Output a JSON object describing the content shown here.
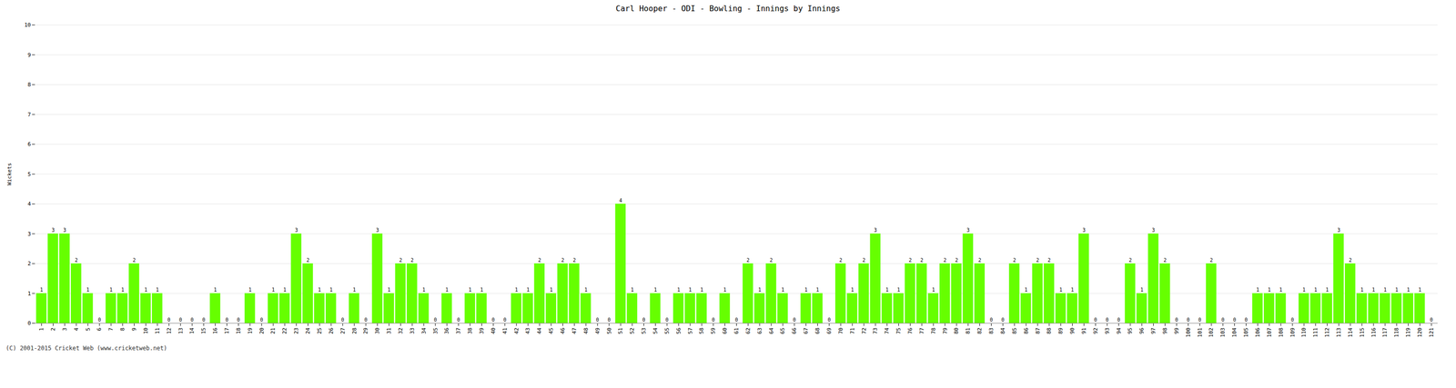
{
  "chart_data": {
    "type": "bar",
    "title": "Carl Hooper - ODI - Bowling - Innings by Innings",
    "ylabel": "Wickets",
    "annotations": [
      "(C) 2001-2015 Cricket Web (www.cricketweb.net)"
    ],
    "categories": [
      1,
      2,
      3,
      4,
      5,
      6,
      7,
      8,
      9,
      10,
      11,
      12,
      13,
      14,
      15,
      16,
      17,
      18,
      19,
      20,
      21,
      22,
      23,
      24,
      25,
      26,
      27,
      28,
      29,
      30,
      31,
      32,
      33,
      34,
      35,
      36,
      37,
      38,
      39,
      40,
      41,
      42,
      43,
      44,
      45,
      46,
      47,
      48,
      49,
      50,
      51,
      52,
      53,
      54,
      55,
      56,
      57,
      58,
      59,
      60,
      61,
      62,
      63,
      64,
      65,
      66,
      67,
      68,
      69,
      70,
      71,
      72,
      73,
      74,
      75,
      76,
      77,
      78,
      79,
      80,
      81,
      82,
      83,
      84,
      85,
      86,
      87,
      88,
      89,
      90,
      91,
      92,
      93,
      94,
      95,
      96,
      97,
      98,
      99,
      100,
      101,
      102,
      103,
      104,
      105,
      106,
      107,
      108,
      109,
      110,
      111,
      112,
      113,
      114,
      115,
      116,
      117,
      118,
      119,
      120,
      121
    ],
    "values": [
      1,
      3,
      3,
      2,
      1,
      0,
      1,
      1,
      2,
      1,
      1,
      0,
      0,
      0,
      0,
      1,
      0,
      0,
      1,
      0,
      1,
      1,
      3,
      2,
      1,
      1,
      0,
      1,
      0,
      3,
      1,
      2,
      2,
      1,
      0,
      1,
      0,
      1,
      1,
      0,
      0,
      1,
      1,
      2,
      1,
      2,
      2,
      1,
      0,
      0,
      4,
      1,
      0,
      1,
      0,
      1,
      1,
      1,
      0,
      1,
      0,
      2,
      1,
      2,
      1,
      0,
      1,
      1,
      0,
      2,
      1,
      2,
      3,
      1,
      1,
      2,
      2,
      1,
      2,
      2,
      3,
      2,
      0,
      0,
      2,
      1,
      2,
      2,
      1,
      1,
      3,
      0,
      0,
      0,
      2,
      1,
      3,
      2,
      0,
      0,
      0,
      2,
      0,
      0,
      0,
      1,
      1,
      1,
      0,
      1,
      1,
      1,
      3,
      2,
      1,
      1,
      1,
      1,
      1,
      1,
      0
    ],
    "color": "#66ff00",
    "ylim": [
      0,
      10
    ],
    "yticks": [
      0,
      1,
      2,
      3,
      4,
      5,
      6,
      7,
      8,
      9,
      10
    ],
    "grid": true,
    "data_labels": true
  }
}
